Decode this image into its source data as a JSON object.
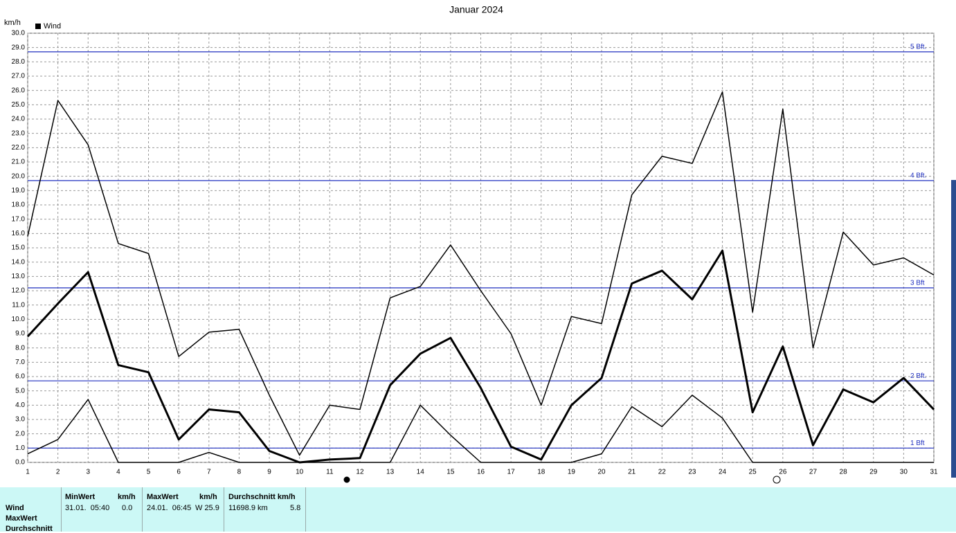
{
  "chart_data": {
    "type": "line",
    "title": "Januar 2024",
    "y_unit": "km/h",
    "legend": "Wind",
    "legend_color": "#000000",
    "grid": true,
    "x": [
      1,
      2,
      3,
      4,
      5,
      6,
      7,
      8,
      9,
      10,
      11,
      12,
      13,
      14,
      15,
      16,
      17,
      18,
      19,
      20,
      21,
      22,
      23,
      24,
      25,
      26,
      27,
      28,
      29,
      30,
      31
    ],
    "xlim": [
      1,
      31
    ],
    "xticks": [
      1,
      2,
      3,
      4,
      5,
      6,
      7,
      8,
      9,
      10,
      11,
      12,
      13,
      14,
      15,
      16,
      17,
      18,
      19,
      20,
      21,
      22,
      23,
      24,
      25,
      26,
      27,
      28,
      29,
      30,
      31
    ],
    "ylim": [
      0,
      30
    ],
    "yticks": [
      {
        "value": 0,
        "label": "0.0"
      },
      {
        "value": 1,
        "label": "1.0"
      },
      {
        "value": 2,
        "label": "2.0"
      },
      {
        "value": 3,
        "label": "3.0"
      },
      {
        "value": 4,
        "label": "4.0"
      },
      {
        "value": 5,
        "label": "5.0"
      },
      {
        "value": 6,
        "label": "6.0"
      },
      {
        "value": 7,
        "label": "7.0"
      },
      {
        "value": 8,
        "label": "8.0"
      },
      {
        "value": 9,
        "label": "9.0"
      },
      {
        "value": 10,
        "label": "10.0"
      },
      {
        "value": 11,
        "label": "11.0"
      },
      {
        "value": 12,
        "label": "12.0"
      },
      {
        "value": 13,
        "label": "13.0"
      },
      {
        "value": 14,
        "label": "14.0"
      },
      {
        "value": 15,
        "label": "15.0"
      },
      {
        "value": 16,
        "label": "16.0"
      },
      {
        "value": 17,
        "label": "17.0"
      },
      {
        "value": 18,
        "label": "18.0"
      },
      {
        "value": 19,
        "label": "19.0"
      },
      {
        "value": 20,
        "label": "20.0"
      },
      {
        "value": 21,
        "label": "21.0"
      },
      {
        "value": 22,
        "label": "22.0"
      },
      {
        "value": 23,
        "label": "23.0"
      },
      {
        "value": 24,
        "label": "24.0"
      },
      {
        "value": 25,
        "label": "25.0"
      },
      {
        "value": 26,
        "label": "26.0"
      },
      {
        "value": 27,
        "label": "27.0"
      },
      {
        "value": 28,
        "label": "28.0"
      },
      {
        "value": 29,
        "label": "29.0"
      },
      {
        "value": 30,
        "label": "30.0"
      }
    ],
    "series": [
      {
        "color": "#000000",
        "width": 1.5,
        "values": [
          15.8,
          25.3,
          22.2,
          15.3,
          14.6,
          7.4,
          9.1,
          9.3,
          4.7,
          0.5,
          4.0,
          3.7,
          11.5,
          12.3,
          15.2,
          12.0,
          9.0,
          4.0,
          10.2,
          9.7,
          18.7,
          21.4,
          20.9,
          25.9,
          10.5,
          24.7,
          8.0,
          16.1,
          13.8,
          14.3,
          13.1
        ]
      },
      {
        "color": "#000000",
        "width": 3,
        "values": [
          8.8,
          11.1,
          13.3,
          6.8,
          6.3,
          1.6,
          3.7,
          3.5,
          0.8,
          0.0,
          0.2,
          0.3,
          5.4,
          7.6,
          8.7,
          5.2,
          1.1,
          0.2,
          4.0,
          5.9,
          12.5,
          13.4,
          11.4,
          14.8,
          3.5,
          8.1,
          1.2,
          5.1,
          4.2,
          5.9,
          3.7
        ]
      },
      {
        "color": "#000000",
        "width": 1.5,
        "values": [
          0.6,
          1.6,
          4.4,
          0.0,
          0.0,
          0.0,
          0.7,
          0.0,
          0.0,
          0.0,
          0.0,
          0.0,
          0.0,
          4.0,
          1.9,
          0.0,
          0.0,
          0.0,
          0.0,
          0.6,
          3.9,
          2.5,
          4.7,
          3.1,
          0.0,
          0.0,
          0.0,
          0.0,
          0.0,
          0.0,
          0.0
        ]
      }
    ],
    "reference_lines": [
      {
        "value": 1.0,
        "label": "1 Bft",
        "color": "#1f2fbf"
      },
      {
        "value": 5.7,
        "label": "2 Bft.",
        "color": "#1f2fbf"
      },
      {
        "value": 12.2,
        "label": "3 Bft",
        "color": "#1f2fbf"
      },
      {
        "value": 19.7,
        "label": "4 Bft.",
        "color": "#1f2fbf"
      },
      {
        "value": 28.7,
        "label": "5 Bft.",
        "color": "#1f2fbf"
      }
    ]
  },
  "table": {
    "headers": [
      "MinWert",
      "km/h",
      "MaxWert",
      "km/h",
      "Durchschnitt km/h"
    ],
    "rows": [
      [
        "Wind",
        "31.01.  05:40",
        "0.0",
        "24.01.  06:45",
        "W 25.9",
        "11698.9 km",
        "5.8"
      ],
      [
        "MaxWert"
      ],
      [
        "Durchschnitt"
      ]
    ]
  }
}
